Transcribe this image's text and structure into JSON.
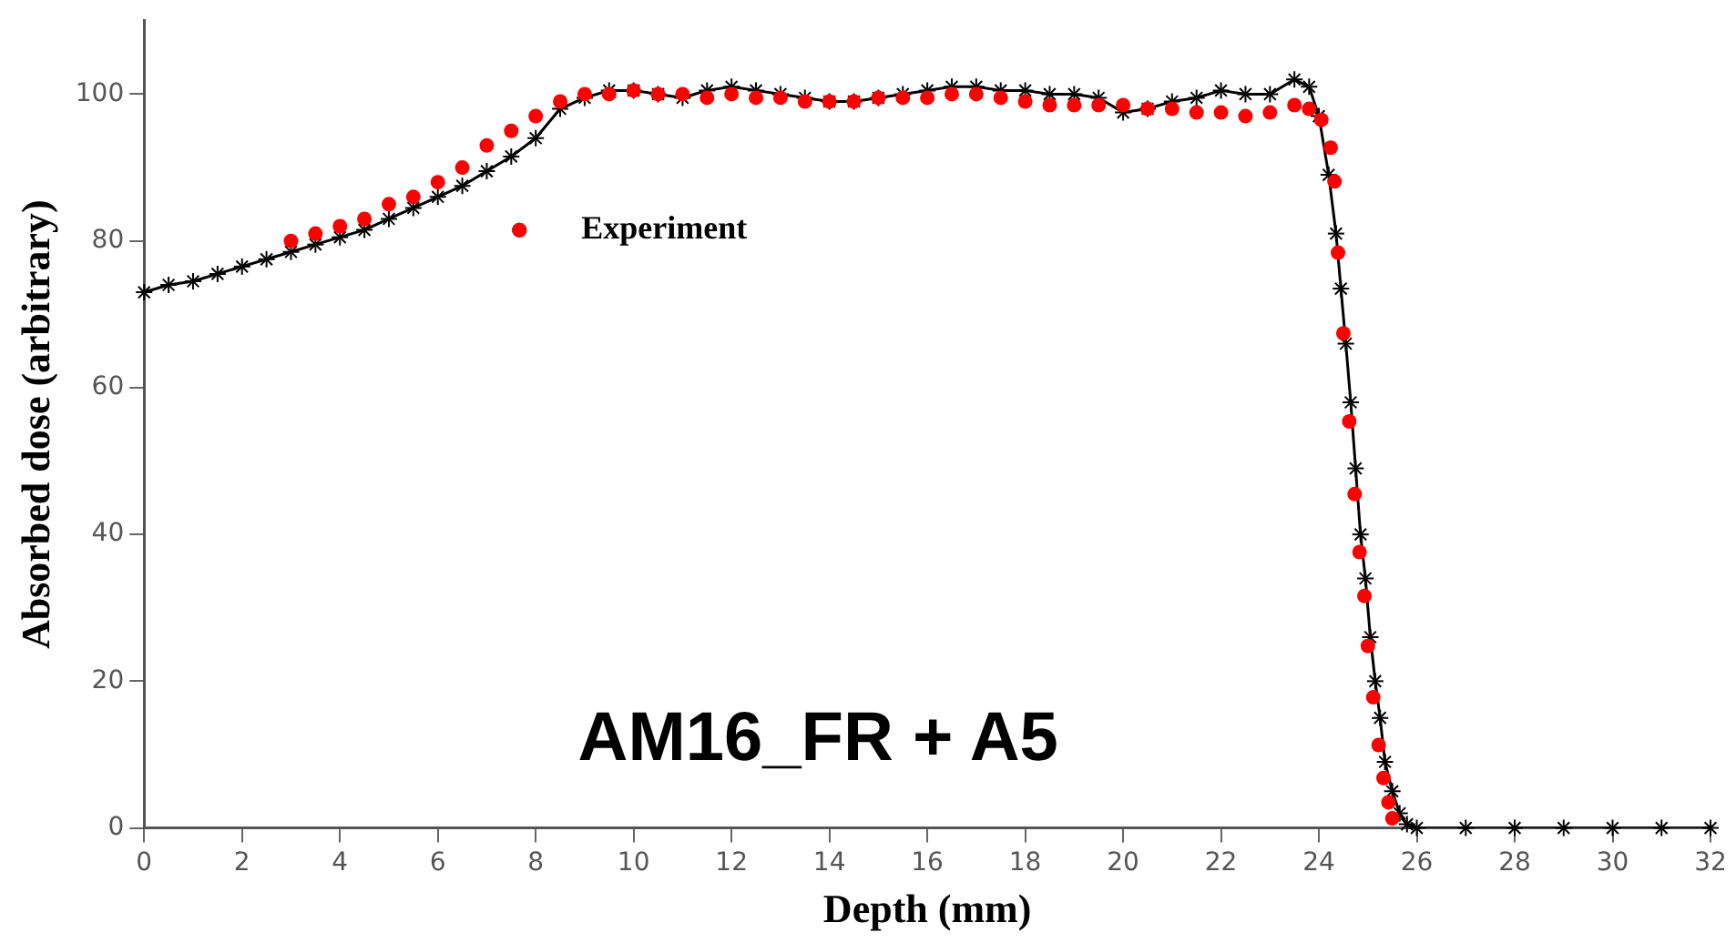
{
  "chart_data": {
    "type": "line",
    "xlabel": "Depth (mm)",
    "ylabel": "Absorbed dose (arbitrary)",
    "xlim": [
      0,
      32
    ],
    "xticks": [
      0,
      2,
      4,
      6,
      8,
      10,
      12,
      14,
      16,
      18,
      20,
      22,
      24,
      26,
      28,
      30,
      32
    ],
    "ylim": [
      0,
      110
    ],
    "yticks": [
      0,
      20,
      40,
      60,
      80,
      100
    ],
    "grid": false,
    "legend": "top left",
    "annotations": [
      "AM16_FR + A5"
    ],
    "series": [
      {
        "name": "Experiment",
        "type": "scatter",
        "marker": "circle",
        "color": "#ff0000",
        "x": [
          3,
          3.5,
          4,
          4.5,
          5,
          5.5,
          6,
          6.5,
          7,
          7.5,
          8,
          8.5,
          9,
          9.5,
          10,
          10.5,
          11,
          11.5,
          12,
          12.5,
          13,
          13.5,
          14,
          14.5,
          15,
          15.5,
          16,
          16.5,
          17,
          17.5,
          18,
          18.5,
          19,
          19.5,
          20,
          20.5,
          21,
          21.5,
          22,
          22.5,
          23,
          23.5,
          23.8,
          24.05,
          24.24,
          24.32,
          24.39,
          24.5,
          24.62,
          24.73,
          24.83,
          24.93,
          25.0,
          25.11,
          25.22,
          25.32,
          25.42,
          25.5
        ],
        "values": [
          80,
          81,
          82,
          83,
          85,
          86,
          88,
          90,
          93,
          95,
          97,
          99,
          100,
          100,
          100.5,
          100,
          100,
          99.5,
          100,
          99.5,
          99.5,
          99,
          99,
          99,
          99.5,
          99.5,
          99.5,
          100,
          100,
          99.5,
          99,
          98.5,
          98.5,
          98.5,
          98.5,
          98,
          98,
          97.5,
          97.5,
          97,
          97.5,
          98.5,
          98,
          96.5,
          92.7,
          88.1,
          78.4,
          67.4,
          55.4,
          45.5,
          37.6,
          31.6,
          24.8,
          17.8,
          11.3,
          6.8,
          3.5,
          1.3
        ]
      },
      {
        "type": "line",
        "marker": "cross",
        "color": "#000000",
        "x": [
          0,
          0.5,
          1,
          1.5,
          2,
          2.5,
          3,
          3.5,
          4,
          4.5,
          5,
          5.5,
          6,
          6.5,
          7,
          7.5,
          8,
          8.5,
          9,
          9.5,
          10,
          10.5,
          11,
          11.5,
          12,
          12.5,
          13,
          13.5,
          14,
          14.5,
          15,
          15.5,
          16,
          16.5,
          17,
          17.5,
          18,
          18.5,
          19,
          19.5,
          20,
          20.5,
          21,
          21.5,
          22,
          22.5,
          23,
          23.5,
          23.8,
          24.0,
          24.2,
          24.35,
          24.45,
          24.55,
          24.65,
          24.75,
          24.85,
          24.95,
          25.05,
          25.15,
          25.25,
          25.35,
          25.5,
          25.65,
          25.8,
          26,
          27,
          28,
          29,
          30,
          31,
          32
        ],
        "values": [
          73,
          74,
          74.5,
          75.5,
          76.5,
          77.5,
          78.5,
          79.5,
          80.5,
          81.5,
          83,
          84.5,
          86,
          87.5,
          89.5,
          91.5,
          94,
          98,
          99.5,
          100.5,
          100.5,
          100,
          99.5,
          100.5,
          101,
          100.5,
          100,
          99.5,
          99,
          99,
          99.5,
          100,
          100.5,
          101,
          101,
          100.5,
          100.5,
          100,
          100,
          99.5,
          97.5,
          98,
          99,
          99.5,
          100.5,
          100,
          100,
          102,
          101,
          97,
          89,
          81,
          73.5,
          66,
          58,
          49,
          40,
          34,
          26,
          20,
          15,
          9,
          5,
          2,
          0.5,
          0,
          0,
          0,
          0,
          0,
          0,
          0
        ]
      }
    ]
  }
}
